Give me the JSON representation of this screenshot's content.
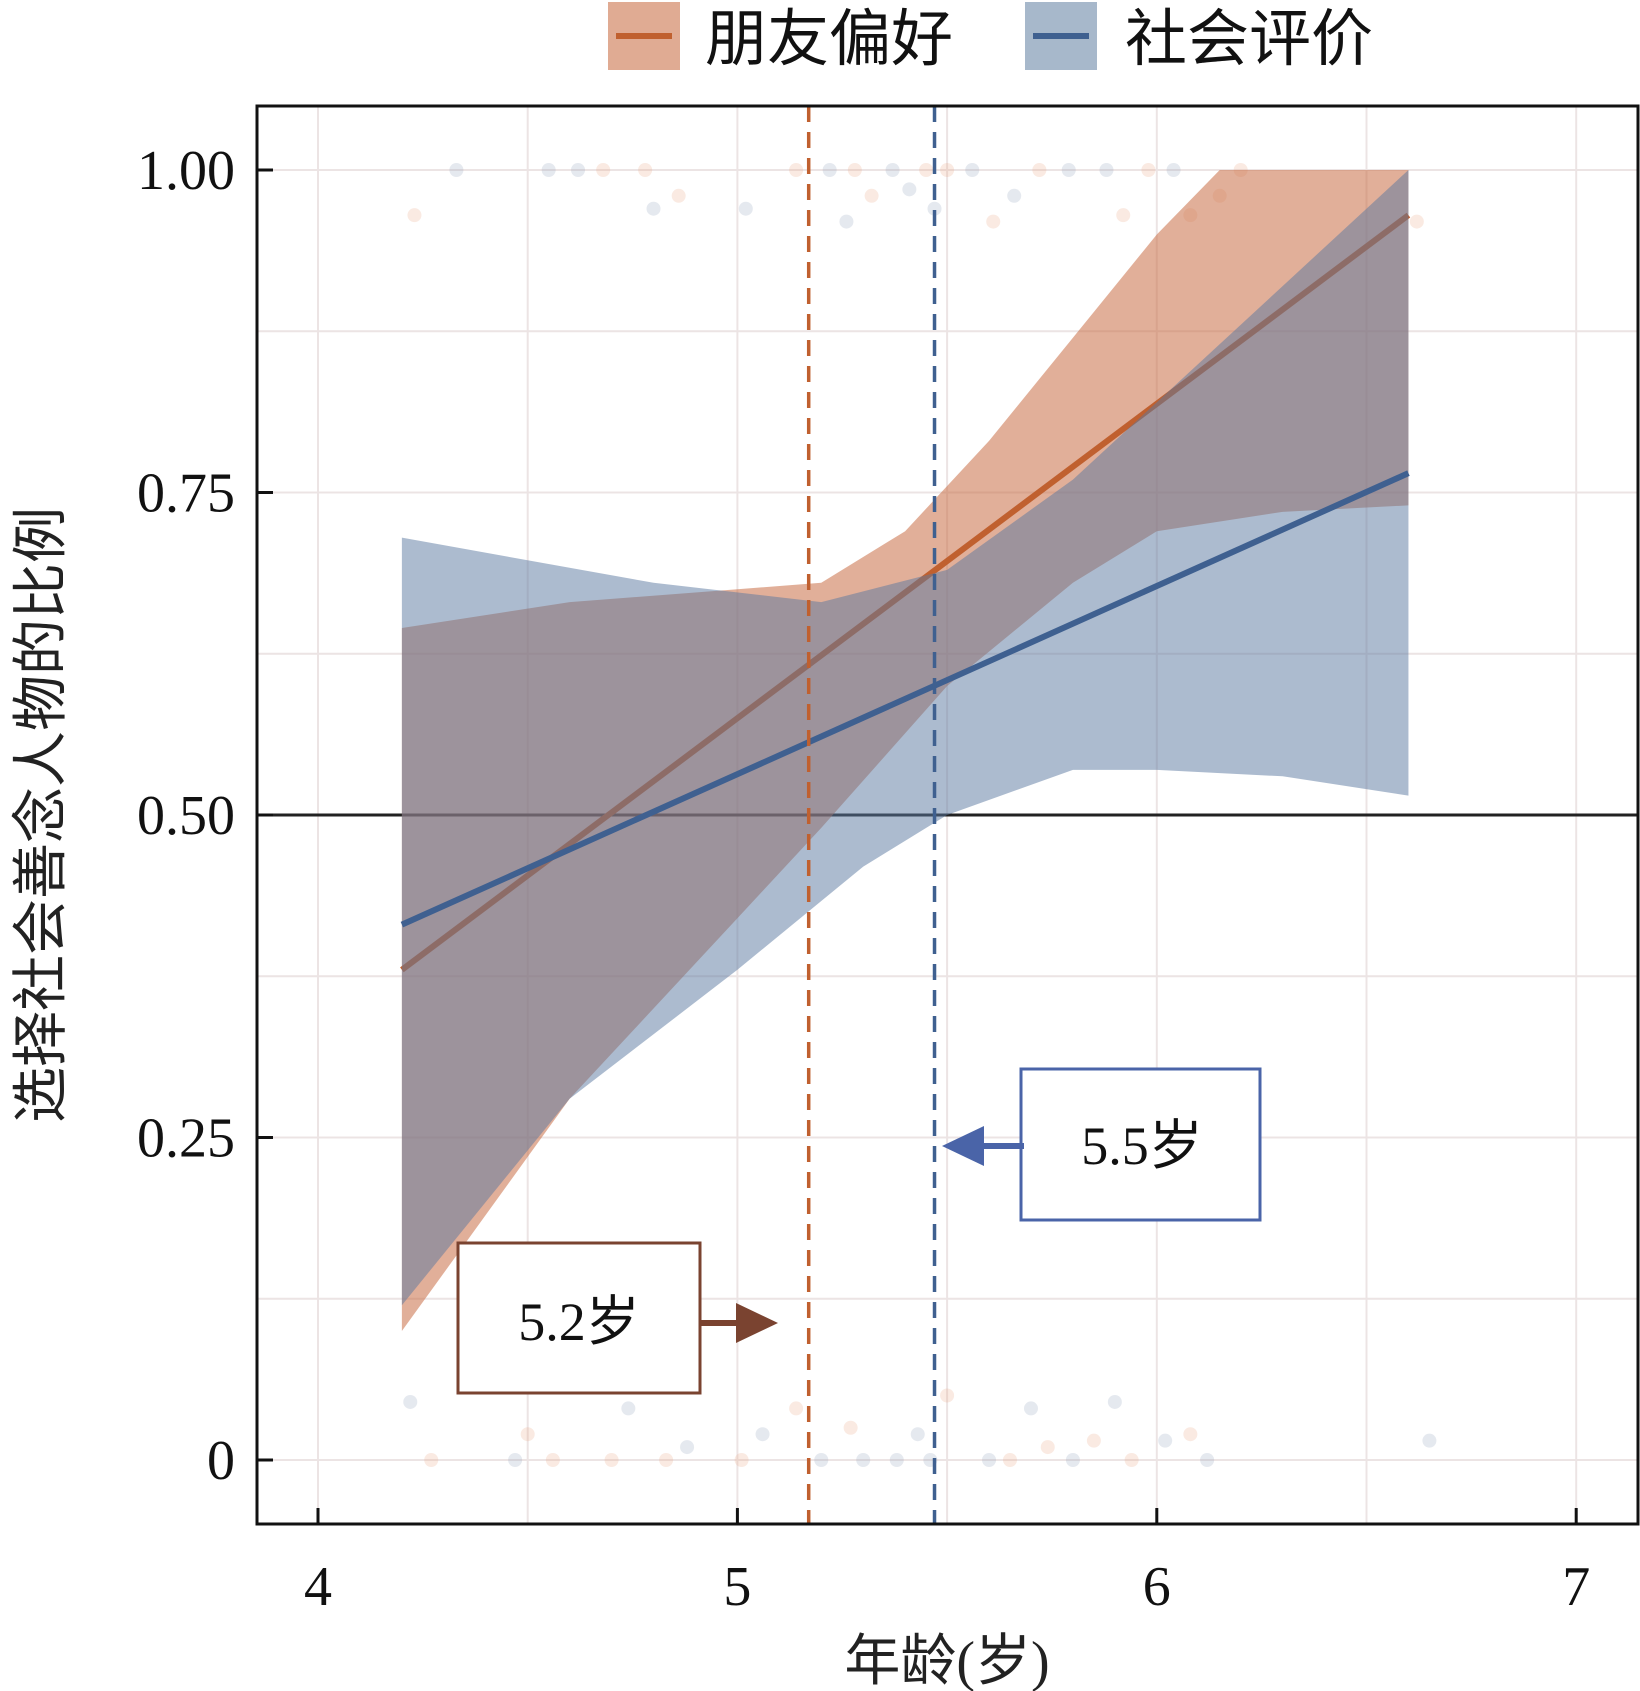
{
  "chart_data": {
    "type": "line",
    "title": "",
    "xlabel": "年龄(岁)",
    "ylabel": "选择社会善念人物的比例",
    "xlim": [
      3.85,
      7.15
    ],
    "ylim": [
      -0.05,
      1.05
    ],
    "xticks": [
      {
        "v": 4,
        "label": "4"
      },
      {
        "v": 5,
        "label": "5"
      },
      {
        "v": 6,
        "label": "6"
      },
      {
        "v": 7,
        "label": "7"
      }
    ],
    "yticks": [
      {
        "v": 1,
        "label": "1.00"
      },
      {
        "v": 0.75,
        "label": "0.75"
      },
      {
        "v": 0.5,
        "label": "0.50"
      },
      {
        "v": 0.25,
        "label": "0.25"
      },
      {
        "v": 0,
        "label": "0"
      }
    ],
    "grid": true,
    "legend_position": "top-center",
    "reference_line_y": 0.5,
    "series": [
      {
        "name": "朋友偏好",
        "color": "#c0602f",
        "band_color": "#c86e46",
        "line": [
          [
            4.2,
            0.38
          ],
          [
            6.6,
            0.965
          ]
        ],
        "ci_upper": [
          [
            4.2,
            0.645
          ],
          [
            4.6,
            0.665
          ],
          [
            5.0,
            0.675
          ],
          [
            5.2,
            0.68
          ],
          [
            5.4,
            0.72
          ],
          [
            5.6,
            0.79
          ],
          [
            5.8,
            0.87
          ],
          [
            6.0,
            0.95
          ],
          [
            6.15,
            1.0
          ],
          [
            6.6,
            1.0
          ]
        ],
        "ci_lower": [
          [
            4.2,
            0.1
          ],
          [
            4.6,
            0.28
          ],
          [
            5.0,
            0.42
          ],
          [
            5.2,
            0.49
          ],
          [
            5.5,
            0.6
          ],
          [
            5.8,
            0.68
          ],
          [
            6.0,
            0.72
          ],
          [
            6.3,
            0.735
          ],
          [
            6.6,
            0.74
          ]
        ],
        "threshold_age": 5.17,
        "annotation": "5.2岁",
        "annotation_color": "#7a4330"
      },
      {
        "name": "社会评价",
        "color": "#3f6090",
        "band_color": "#5a78a0",
        "line": [
          [
            4.2,
            0.415
          ],
          [
            6.6,
            0.765
          ]
        ],
        "ci_upper": [
          [
            4.2,
            0.715
          ],
          [
            4.8,
            0.68
          ],
          [
            5.2,
            0.665
          ],
          [
            5.5,
            0.69
          ],
          [
            5.8,
            0.76
          ],
          [
            6.0,
            0.82
          ],
          [
            6.3,
            0.91
          ],
          [
            6.6,
            1.0
          ]
        ],
        "ci_lower": [
          [
            4.2,
            0.12
          ],
          [
            4.6,
            0.28
          ],
          [
            5.0,
            0.38
          ],
          [
            5.3,
            0.46
          ],
          [
            5.5,
            0.5
          ],
          [
            5.8,
            0.535
          ],
          [
            6.0,
            0.535
          ],
          [
            6.3,
            0.53
          ],
          [
            6.6,
            0.515
          ]
        ],
        "threshold_age": 5.47,
        "annotation": "5.5岁",
        "annotation_color": "#4a64a8"
      }
    ],
    "points": [
      [
        4.23,
        0.965,
        0
      ],
      [
        4.33,
        1,
        1
      ],
      [
        4.55,
        1,
        1
      ],
      [
        4.62,
        1,
        1
      ],
      [
        4.68,
        1,
        0
      ],
      [
        4.78,
        1,
        0
      ],
      [
        4.8,
        0.97,
        1
      ],
      [
        4.86,
        0.98,
        0
      ],
      [
        5.02,
        0.97,
        1
      ],
      [
        5.14,
        1,
        0
      ],
      [
        5.22,
        1,
        1
      ],
      [
        5.26,
        0.96,
        1
      ],
      [
        5.28,
        1,
        0
      ],
      [
        5.32,
        0.98,
        0
      ],
      [
        5.37,
        1,
        1
      ],
      [
        5.41,
        0.985,
        1
      ],
      [
        5.45,
        1,
        0
      ],
      [
        5.47,
        0.97,
        1
      ],
      [
        5.5,
        1,
        0
      ],
      [
        5.56,
        1,
        1
      ],
      [
        5.61,
        0.96,
        0
      ],
      [
        5.66,
        0.98,
        1
      ],
      [
        5.72,
        1,
        0
      ],
      [
        5.79,
        1,
        1
      ],
      [
        5.88,
        1,
        1
      ],
      [
        5.92,
        0.965,
        0
      ],
      [
        5.98,
        1,
        0
      ],
      [
        6.04,
        1,
        1
      ],
      [
        6.08,
        0.965,
        0
      ],
      [
        6.15,
        0.98,
        0
      ],
      [
        6.2,
        1,
        0
      ],
      [
        6.62,
        0.96,
        0
      ],
      [
        4.22,
        0.045,
        1
      ],
      [
        4.27,
        0,
        0
      ],
      [
        4.47,
        0,
        1
      ],
      [
        4.5,
        0.02,
        0
      ],
      [
        4.56,
        0,
        0
      ],
      [
        4.7,
        0,
        0
      ],
      [
        4.74,
        0.04,
        1
      ],
      [
        4.83,
        0,
        0
      ],
      [
        4.88,
        0.01,
        1
      ],
      [
        5.01,
        0,
        0
      ],
      [
        5.06,
        0.02,
        1
      ],
      [
        5.14,
        0.04,
        0
      ],
      [
        5.2,
        0,
        1
      ],
      [
        5.27,
        0.025,
        0
      ],
      [
        5.3,
        0,
        1
      ],
      [
        5.38,
        0,
        1
      ],
      [
        5.43,
        0.02,
        1
      ],
      [
        5.46,
        0,
        1
      ],
      [
        5.5,
        0.05,
        0
      ],
      [
        5.6,
        0,
        1
      ],
      [
        5.65,
        0,
        0
      ],
      [
        5.7,
        0.04,
        1
      ],
      [
        5.74,
        0.01,
        0
      ],
      [
        5.8,
        0,
        1
      ],
      [
        5.85,
        0.015,
        0
      ],
      [
        5.9,
        0.045,
        1
      ],
      [
        5.94,
        0,
        0
      ],
      [
        6.02,
        0.015,
        1
      ],
      [
        6.08,
        0.02,
        0
      ],
      [
        6.12,
        0,
        1
      ],
      [
        6.65,
        0.015,
        1
      ]
    ]
  }
}
